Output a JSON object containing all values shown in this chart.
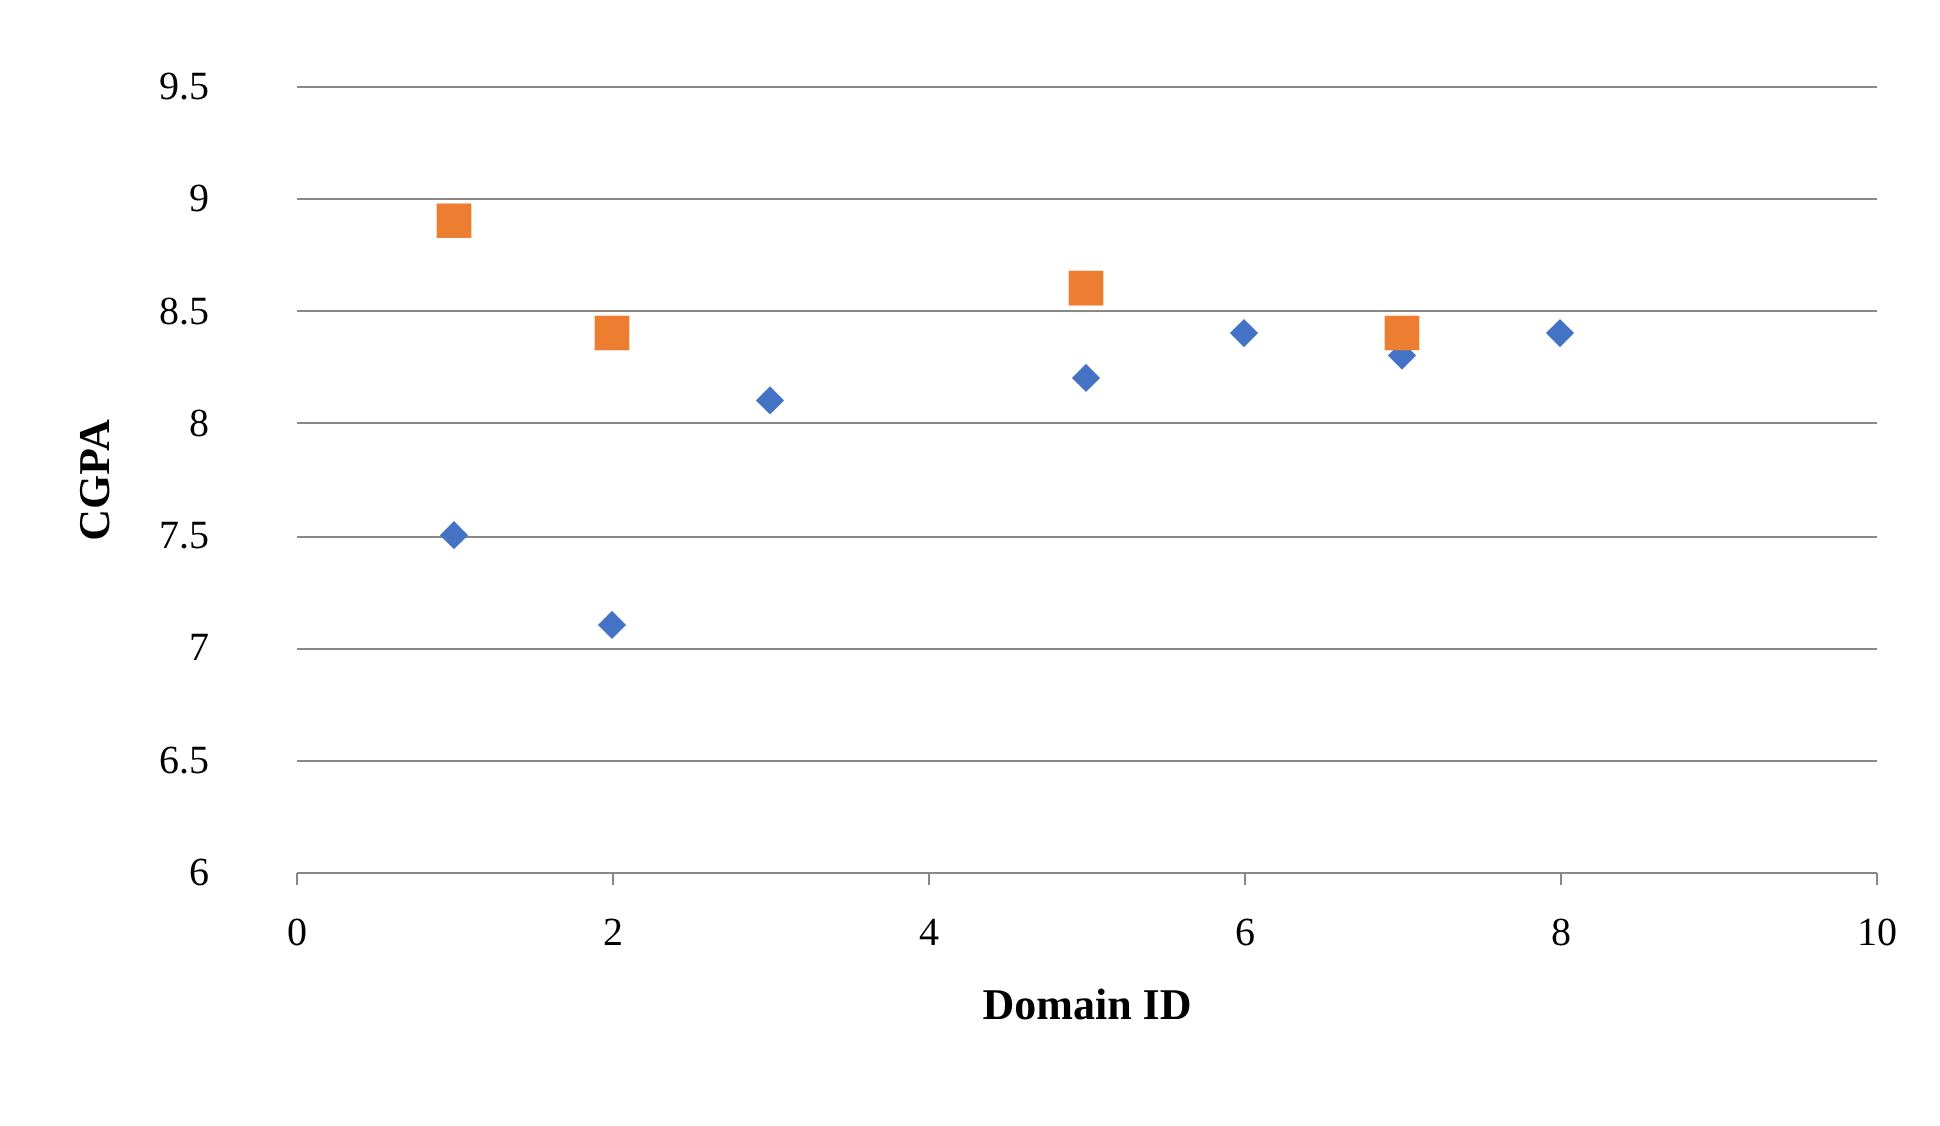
{
  "chart_data": {
    "type": "scatter",
    "xlabel": "Domain ID",
    "ylabel": "CGPA",
    "series": [
      {
        "color": "#4472c4",
        "marker": "diamond",
        "x": [
          1,
          2,
          3,
          5,
          6,
          7,
          8
        ],
        "values": [
          7.5,
          7.1,
          8.1,
          8.2,
          8.4,
          8.3,
          8.4
        ]
      },
      {
        "color": "#ed7d31",
        "marker": "square",
        "x": [
          1,
          2,
          5,
          7
        ],
        "values": [
          8.9,
          8.4,
          8.6,
          8.4
        ]
      }
    ],
    "xlim": [
      0,
      10
    ],
    "xticks": [
      0,
      2,
      4,
      6,
      8,
      10
    ],
    "ylim": [
      6,
      9.5
    ],
    "yticks": [
      6,
      6.5,
      7,
      7.5,
      8,
      8.5,
      9,
      9.5
    ],
    "grid": "y"
  }
}
